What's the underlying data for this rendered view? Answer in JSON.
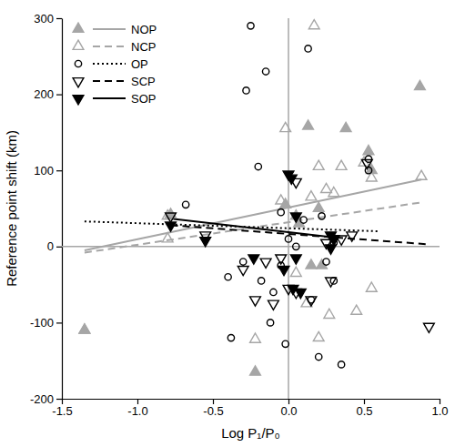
{
  "chart_data": {
    "type": "scatter",
    "x_label": "Log P₁/P₀",
    "y_label": "Reference point shift (km)",
    "xlim": [
      -1.5,
      1.0
    ],
    "ylim": [
      -200,
      300
    ],
    "xticks": [
      -1.5,
      {
        "value": -1,
        "label": "-1.0"
      },
      -0.5,
      {
        "value": 0,
        "label": "0.0"
      },
      0.5,
      {
        "value": 1,
        "label": "1.0"
      }
    ],
    "yticks": [
      -200,
      -100,
      0,
      100,
      200,
      300
    ],
    "legend": "top-left",
    "grid": false,
    "reference_lines": [
      {
        "axis": "x",
        "value": 0
      },
      {
        "axis": "y",
        "value": 0
      }
    ],
    "series": [
      {
        "name": "NOP",
        "color": "#a6a6a6",
        "marker": "triangle",
        "line_style": "solid",
        "x": [
          -1.35,
          -0.78,
          -0.22,
          0.13,
          0.38,
          0.53,
          0.87,
          0.55,
          -0.02,
          0.07,
          0.2,
          0.22,
          0.15,
          0.05
        ],
        "values": [
          -110,
          42,
          -165,
          158,
          155,
          125,
          210,
          100,
          55,
          30,
          50,
          -25,
          -25,
          40
        ],
        "fit": {
          "x": [
            -1.35,
            0.88
          ],
          "y": [
            -5,
            88
          ]
        }
      },
      {
        "name": "NCP",
        "color": "#a6a6a6",
        "marker": "triangle-open",
        "line_style": "dashed",
        "x": [
          -1.35,
          -0.8,
          -0.8,
          -0.22,
          0.17,
          -0.02,
          0.2,
          0.25,
          0.3,
          0.35,
          0.5,
          0.55,
          0.88,
          0.27,
          0.45,
          0.55,
          0.12,
          0.2,
          0.05,
          -0.05,
          0.15
        ],
        "values": [
          -110,
          10,
          40,
          -122,
          290,
          155,
          105,
          75,
          70,
          105,
          110,
          90,
          92,
          -90,
          -85,
          -55,
          -75,
          -120,
          -35,
          60,
          65
        ],
        "fit": {
          "x": [
            -1.35,
            0.88
          ],
          "y": [
            -8,
            58
          ]
        }
      },
      {
        "name": "OP",
        "color": "#000000",
        "marker": "circle-open",
        "line_style": "dotted",
        "x": [
          -0.25,
          -0.28,
          -0.15,
          0.13,
          -0.2,
          -0.68,
          -0.4,
          -0.38,
          -0.3,
          -0.18,
          -0.12,
          -0.1,
          -0.02,
          -0.05,
          0.05,
          0.1,
          0.22,
          0.25,
          0.3,
          0.35,
          0.2,
          0.15,
          0.53,
          0.53,
          0.3,
          0.0,
          -0.05
        ],
        "values": [
          290,
          205,
          230,
          260,
          105,
          55,
          -40,
          -120,
          -20,
          -45,
          -100,
          -60,
          -128,
          -25,
          0,
          35,
          40,
          -20,
          -45,
          -155,
          -145,
          -70,
          115,
          100,
          5,
          10,
          45
        ],
        "fit": {
          "x": [
            -1.35,
            0.6
          ],
          "y": [
            33,
            20
          ]
        }
      },
      {
        "name": "SCP",
        "color": "#000000",
        "marker": "triangle-down-open",
        "line_style": "dashed",
        "x": [
          -0.78,
          -0.55,
          -0.22,
          -0.3,
          -0.15,
          -0.1,
          -0.05,
          0.0,
          0.05,
          0.15,
          0.28,
          0.3,
          0.35,
          0.42,
          0.52,
          0.93,
          0.05,
          0.25
        ],
        "values": [
          40,
          15,
          -70,
          -30,
          -20,
          -75,
          -15,
          -55,
          -60,
          -70,
          -45,
          10,
          10,
          15,
          110,
          -105,
          85,
          5
        ],
        "fit": {
          "x": [
            -0.78,
            0.92
          ],
          "y": [
            28,
            3
          ]
        }
      },
      {
        "name": "SOP",
        "color": "#000000",
        "marker": "triangle-down",
        "line_style": "solid",
        "x": [
          -0.78,
          -0.55,
          -0.23,
          0.0,
          0.02,
          -0.03,
          0.05,
          0.05,
          0.03,
          0.08,
          0.28,
          0.3,
          0.28
        ],
        "values": [
          28,
          8,
          -15,
          95,
          90,
          -30,
          -15,
          40,
          -55,
          -60,
          -2,
          10,
          15
        ],
        "fit": {
          "x": [
            -0.8,
            0.3
          ],
          "y": [
            37,
            12
          ]
        }
      }
    ]
  }
}
